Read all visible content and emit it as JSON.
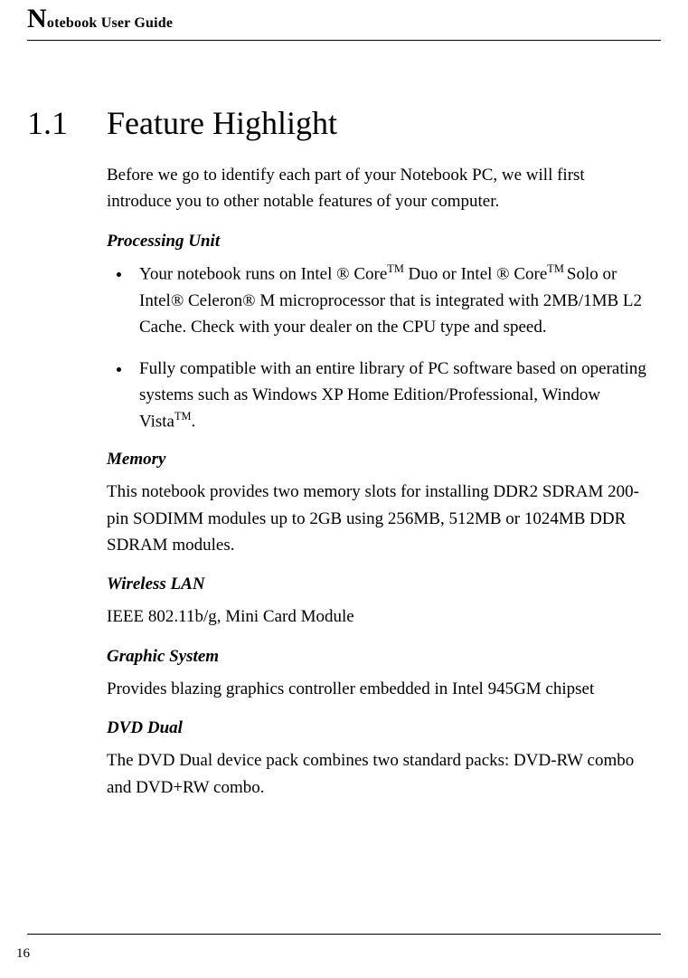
{
  "header": {
    "dropcap": "N",
    "rest": "otebook User Guide"
  },
  "section": {
    "number": "1.1",
    "title": "Feature Highlight"
  },
  "intro": "Before we go to identify each part of your Notebook PC, we will first introduce you to other notable features of your computer.",
  "blocks": {
    "processing": {
      "heading": "Processing Unit",
      "b1a": "Your notebook runs on Intel ® Core",
      "tm1": "TM",
      "b1b": " Duo or Intel ® Core",
      "tm2": "TM ",
      "b1c": "Solo or Intel® Celeron® M microprocessor that is integrated with 2MB/1MB L2 Cache. Check with your dealer on the CPU type and speed.",
      "b2a": "Fully compatible with an entire library of PC software based on operating systems such as Windows XP Home Edition/Professional, Window Vista",
      "tm3": "TM",
      "b2b": "."
    },
    "memory": {
      "heading": "Memory",
      "text": "This notebook provides two memory slots for installing DDR2 SDRAM 200-pin SODIMM modules up to 2GB using 256MB, 512MB or 1024MB DDR SDRAM modules."
    },
    "wlan": {
      "heading": "Wireless LAN",
      "text": "IEEE 802.11b/g, Mini Card Module"
    },
    "graphic": {
      "heading": "Graphic System",
      "text": "Provides blazing graphics controller embedded in Intel 945GM chipset"
    },
    "dvd": {
      "heading": "DVD Dual",
      "text": "The DVD Dual device pack combines two standard packs: DVD-RW combo and DVD+RW combo."
    }
  },
  "pagenum": "16"
}
